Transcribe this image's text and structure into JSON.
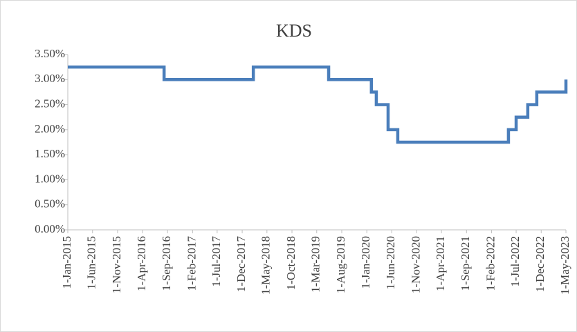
{
  "chart_data": {
    "type": "line",
    "step": "post",
    "title": "KDS",
    "x": [
      "2015-01-01",
      "2016-08-11",
      "2018-02-07",
      "2019-05-13",
      "2020-01-29",
      "2020-02-28",
      "2020-05-10",
      "2020-07-08",
      "2022-05-15",
      "2022-07-01",
      "2022-09-10",
      "2022-11-04",
      "2023-05-01"
    ],
    "series": [
      {
        "name": "KDS",
        "color": "#4a7ebb",
        "values": [
          3.25,
          3.0,
          3.25,
          3.0,
          2.75,
          2.5,
          2.0,
          1.75,
          2.0,
          2.25,
          2.5,
          2.75,
          3.0
        ]
      }
    ],
    "xlim": [
      "2015-01-01",
      "2023-05-01"
    ],
    "xticks": [
      {
        "value": "2015-01-01",
        "label": "1-Jan-2015"
      },
      {
        "value": "2015-06-01",
        "label": "1-Jun-2015"
      },
      {
        "value": "2015-11-01",
        "label": "1-Nov-2015"
      },
      {
        "value": "2016-04-01",
        "label": "1-Apr-2016"
      },
      {
        "value": "2016-09-01",
        "label": "1-Sep-2016"
      },
      {
        "value": "2017-02-01",
        "label": "1-Feb-2017"
      },
      {
        "value": "2017-07-01",
        "label": "1-Jul-2017"
      },
      {
        "value": "2017-12-01",
        "label": "1-Dec-2017"
      },
      {
        "value": "2018-05-01",
        "label": "1-May-2018"
      },
      {
        "value": "2018-10-01",
        "label": "1-Oct-2018"
      },
      {
        "value": "2019-03-01",
        "label": "1-Mar-2019"
      },
      {
        "value": "2019-08-01",
        "label": "1-Aug-2019"
      },
      {
        "value": "2020-01-01",
        "label": "1-Jan-2020"
      },
      {
        "value": "2020-06-01",
        "label": "1-Jun-2020"
      },
      {
        "value": "2020-11-01",
        "label": "1-Nov-2020"
      },
      {
        "value": "2021-04-01",
        "label": "1-Apr-2021"
      },
      {
        "value": "2021-09-01",
        "label": "1-Sep-2021"
      },
      {
        "value": "2022-02-01",
        "label": "1-Feb-2022"
      },
      {
        "value": "2022-07-01",
        "label": "1-Jul-2022"
      },
      {
        "value": "2022-12-01",
        "label": "1-Dec-2022"
      },
      {
        "value": "2023-05-01",
        "label": "1-May-2023"
      }
    ],
    "ylim": [
      0,
      3.5
    ],
    "yticks": [
      {
        "value": 0,
        "label": "0.00%"
      },
      {
        "value": 0.5,
        "label": "0.50%"
      },
      {
        "value": 1,
        "label": "1.00%"
      },
      {
        "value": 1.5,
        "label": "1.50%"
      },
      {
        "value": 2,
        "label": "2.00%"
      },
      {
        "value": 2.5,
        "label": "2.50%"
      },
      {
        "value": 3,
        "label": "3.00%"
      },
      {
        "value": 3.5,
        "label": "3.50%"
      }
    ],
    "grid": false
  }
}
